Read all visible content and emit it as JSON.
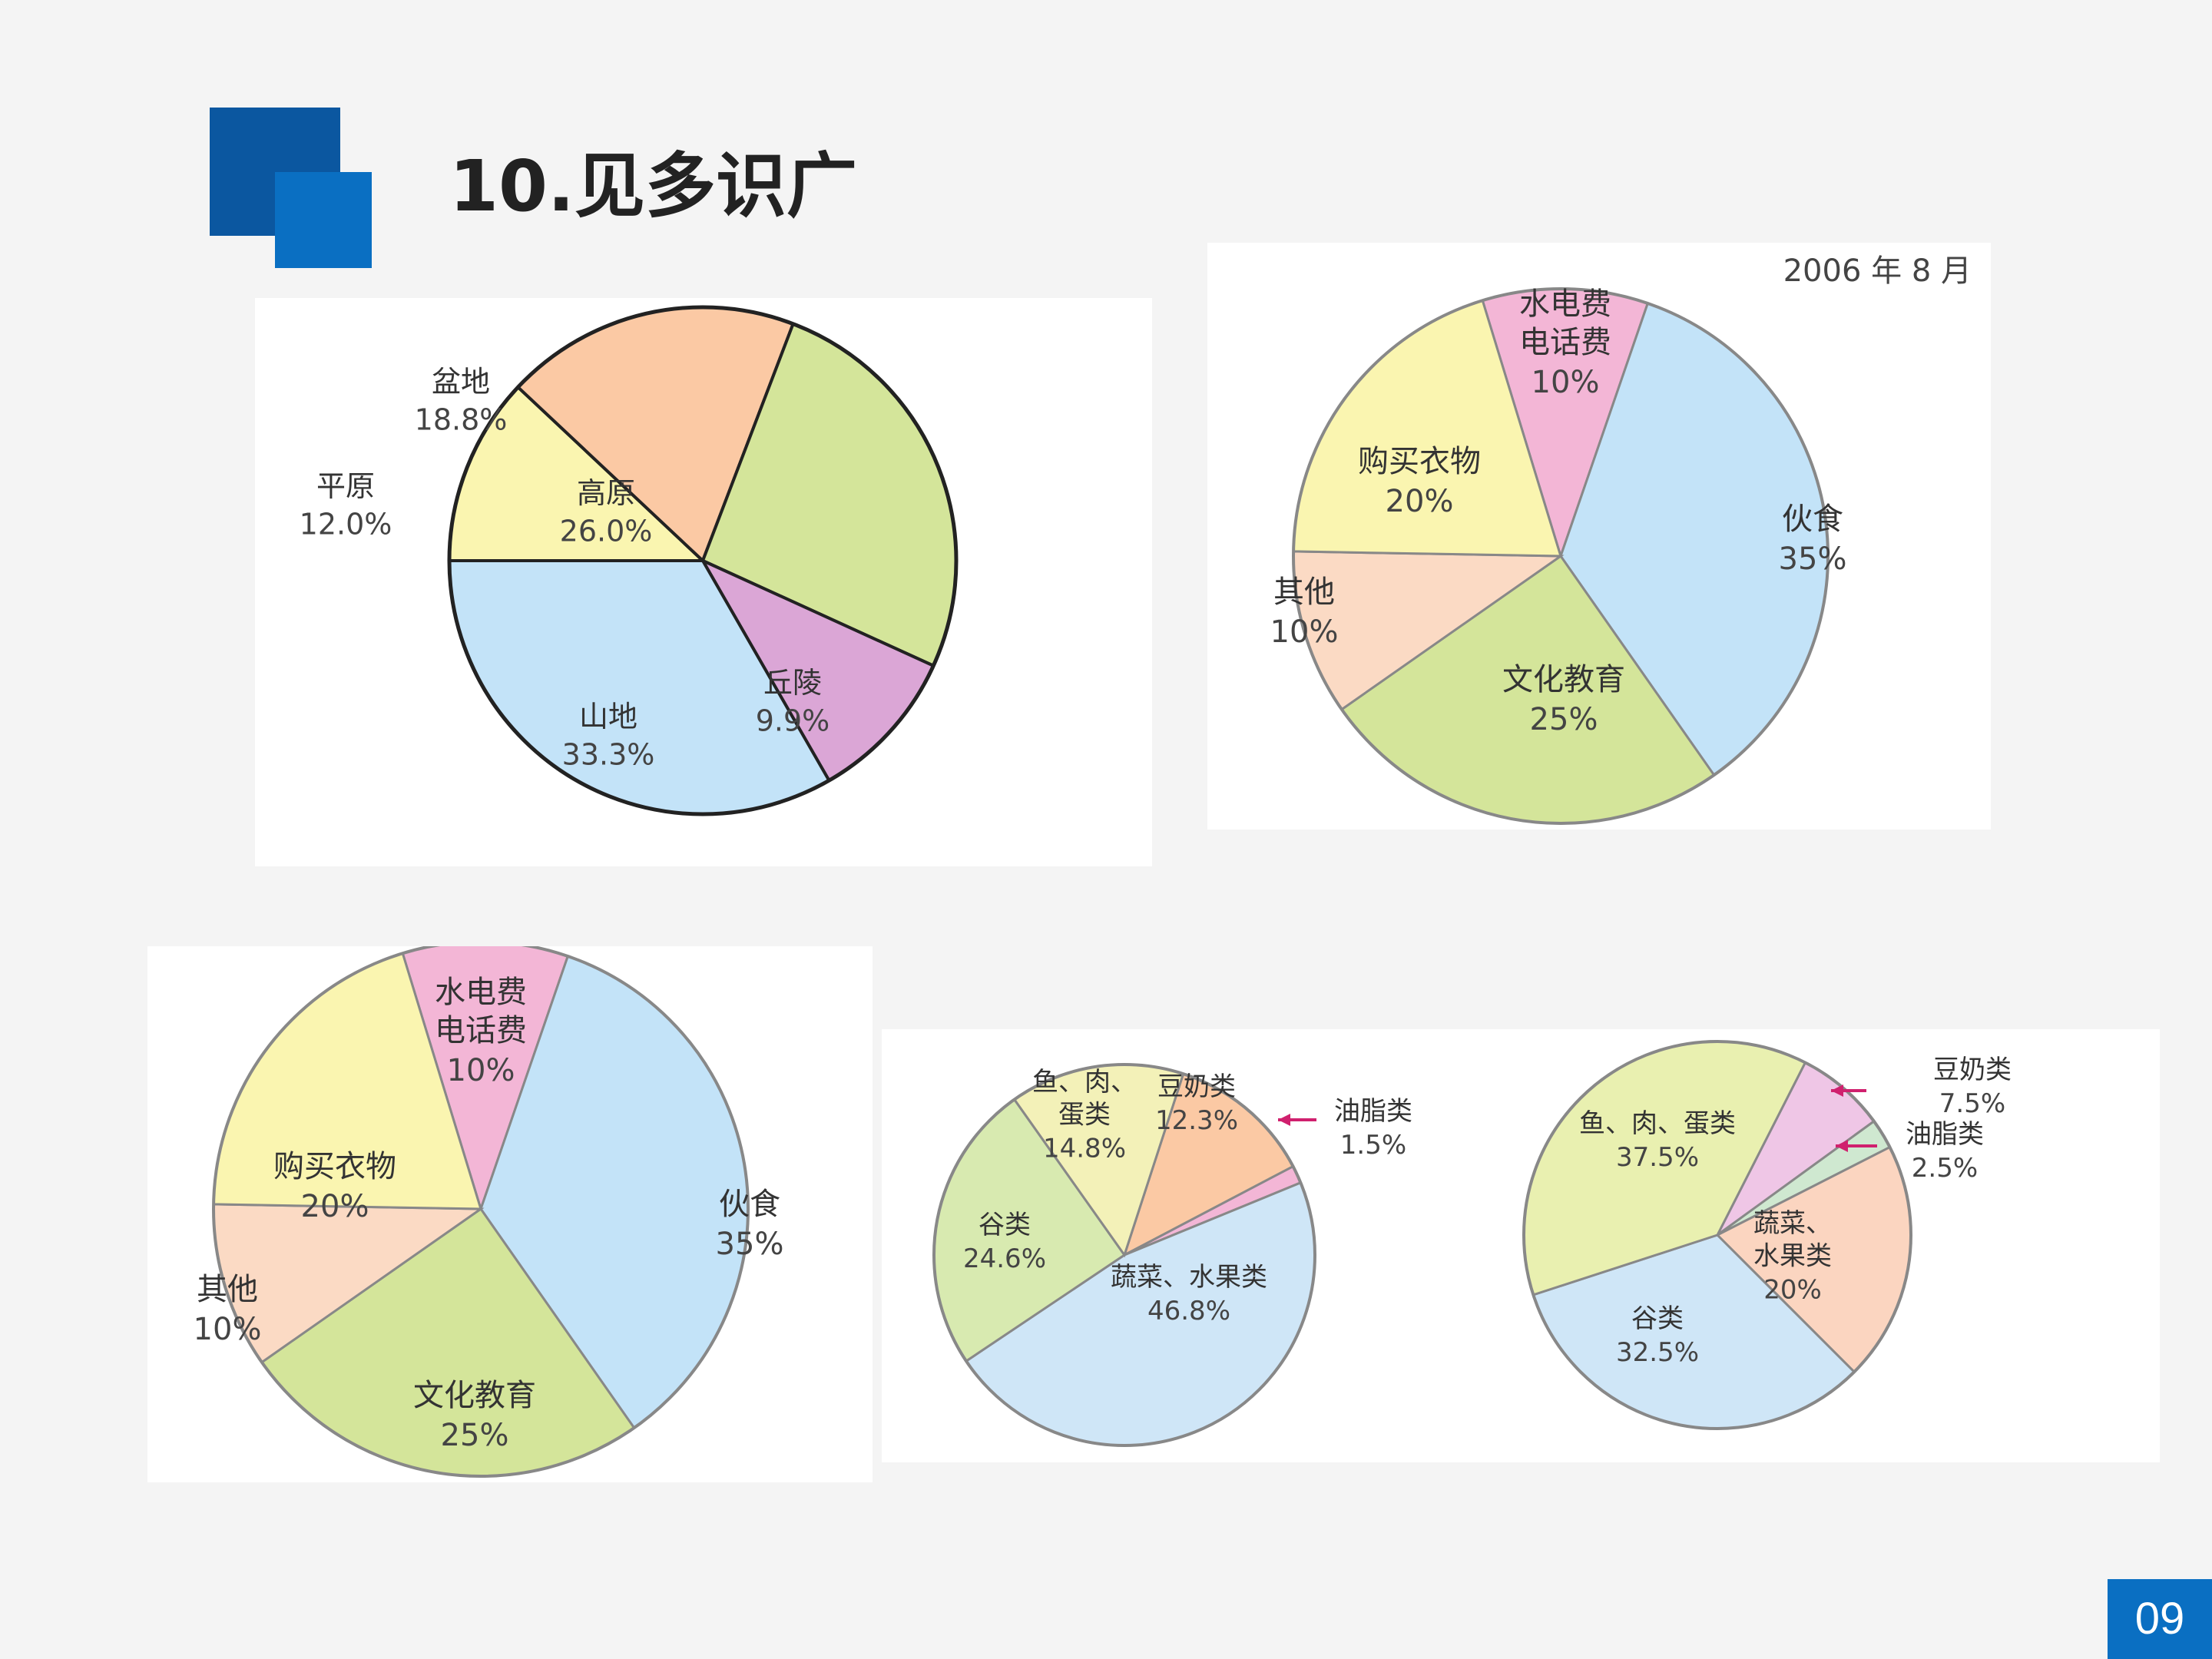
{
  "header": {
    "title": "10.见多识广",
    "page_number": "09"
  },
  "colors": {
    "accent_dark": "#0b57a0",
    "accent": "#0a6fc2",
    "yellow": "#faf5b0",
    "peach": "#fbc9a4",
    "green": "#d4e59a",
    "purple": "#dba6d6",
    "blue": "#c3e3f8",
    "pink": "#f3b6d6",
    "light_peach": "#fbdac4",
    "light_green": "#d8eab0",
    "light_yellow": "#f3f1b8",
    "light_blue": "#cfe6f7",
    "mint": "#cfe8d0"
  },
  "chart_data": [
    {
      "type": "pie",
      "title": "",
      "slices": [
        {
          "label": "平原",
          "value": 12.0,
          "text": "12.0%",
          "color": "#faf5b0"
        },
        {
          "label": "盆地",
          "value": 18.8,
          "text": "18.8%",
          "color": "#fbc9a4"
        },
        {
          "label": "高原",
          "value": 26.0,
          "text": "26.0%",
          "color": "#d4e59a"
        },
        {
          "label": "丘陵",
          "value": 9.9,
          "text": "9.9%",
          "color": "#dba6d6"
        },
        {
          "label": "山地",
          "value": 33.3,
          "text": "33.3%",
          "color": "#c3e3f8"
        }
      ]
    },
    {
      "type": "pie",
      "title": "2006 年 8 月",
      "slices": [
        {
          "label": "水电费\n电话费",
          "value": 10,
          "text": "10%",
          "color": "#f3b6d6"
        },
        {
          "label": "伙食",
          "value": 35,
          "text": "35%",
          "color": "#c3e3f8"
        },
        {
          "label": "文化教育",
          "value": 25,
          "text": "25%",
          "color": "#d4e59a"
        },
        {
          "label": "其他",
          "value": 10,
          "text": "10%",
          "color": "#fbdac4"
        },
        {
          "label": "购买衣物",
          "value": 20,
          "text": "20%",
          "color": "#faf5b0"
        }
      ]
    },
    {
      "type": "pie",
      "title": "",
      "slices": [
        {
          "label": "水电费\n电话费",
          "value": 10,
          "text": "10%",
          "color": "#f3b6d6"
        },
        {
          "label": "伙食",
          "value": 35,
          "text": "35%",
          "color": "#c3e3f8"
        },
        {
          "label": "文化教育",
          "value": 25,
          "text": "25%",
          "color": "#d4e59a"
        },
        {
          "label": "其他",
          "value": 10,
          "text": "10%",
          "color": "#fbdac4"
        },
        {
          "label": "购买衣物",
          "value": 20,
          "text": "20%",
          "color": "#faf5b0"
        }
      ]
    },
    {
      "type": "pie",
      "title": "",
      "slices": [
        {
          "label": "豆奶类",
          "value": 12.3,
          "text": "12.3%",
          "color": "#fbc9a4"
        },
        {
          "label": "油脂类",
          "value": 1.5,
          "text": "1.5%",
          "color": "#f3b6d6"
        },
        {
          "label": "蔬菜、水果类",
          "value": 46.8,
          "text": "46.8%",
          "color": "#cfe6f7"
        },
        {
          "label": "谷类",
          "value": 24.6,
          "text": "24.6%",
          "color": "#d8eab0"
        },
        {
          "label": "鱼、肉、\n蛋类",
          "value": 14.8,
          "text": "14.8%",
          "color": "#f3f1b8"
        }
      ]
    },
    {
      "type": "pie",
      "title": "",
      "slices": [
        {
          "label": "豆奶类",
          "value": 7.5,
          "text": "7.5%",
          "color": "#efc6e6"
        },
        {
          "label": "油脂类",
          "value": 2.5,
          "text": "2.5%",
          "color": "#cfe8d0"
        },
        {
          "label": "蔬菜、\n水果类",
          "value": 20,
          "text": "20%",
          "color": "#fbd5c0"
        },
        {
          "label": "谷类",
          "value": 32.5,
          "text": "32.5%",
          "color": "#cfe6f7"
        },
        {
          "label": "鱼、肉、蛋类",
          "value": 37.5,
          "text": "37.5%",
          "color": "#e9f0b0"
        }
      ]
    }
  ]
}
